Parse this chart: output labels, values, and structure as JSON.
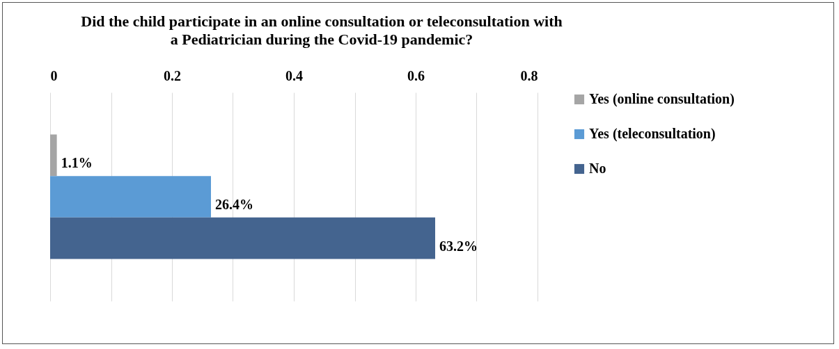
{
  "chart_data": {
    "type": "bar",
    "orientation": "horizontal",
    "title": [
      "Did the child participate in an online consultation or teleconsultation with",
      "a Pediatrician during the Covid-19 pandemic?"
    ],
    "categories": [
      null
    ],
    "series": [
      {
        "name": "Yes (online consultation)",
        "color": "#a5a5a5",
        "values": [
          0.011
        ],
        "value_labels": [
          "1.1%"
        ]
      },
      {
        "name": "Yes (teleconsultation)",
        "color": "#5b9bd5",
        "values": [
          0.264
        ],
        "value_labels": [
          "26.4%"
        ]
      },
      {
        "name": "No",
        "color": "#44648f",
        "values": [
          0.632
        ],
        "value_labels": [
          "63.2%"
        ]
      }
    ],
    "xlim": [
      0,
      0.8
    ],
    "xticks": [
      0,
      {
        "value": 0.1,
        "label": null
      },
      0.2,
      {
        "value": 0.3,
        "label": null
      },
      0.4,
      {
        "value": 0.5,
        "label": null
      },
      0.6,
      {
        "value": 0.7,
        "label": null
      },
      0.8
    ],
    "grid": "x",
    "legend": "right"
  }
}
